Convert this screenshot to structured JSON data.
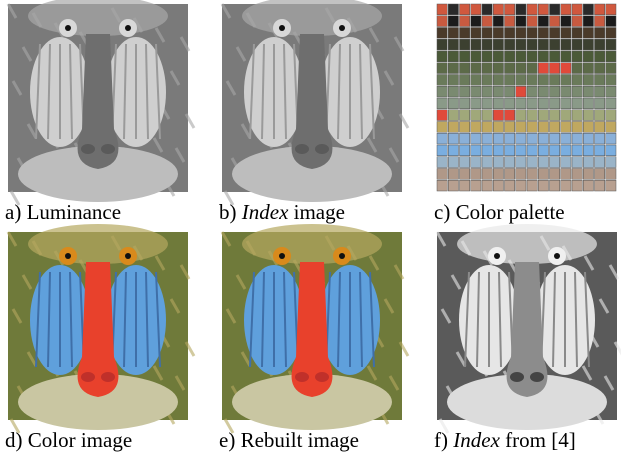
{
  "panels": [
    {
      "label": "a)",
      "text": "Luminance"
    },
    {
      "label": "b)",
      "italic": "Index",
      "text": "image"
    },
    {
      "label": "c)",
      "text": "Color palette"
    },
    {
      "label": "d)",
      "text": "Color image"
    },
    {
      "label": "e)",
      "text": "Rebuilt image"
    },
    {
      "label": "f)",
      "italic": "Index",
      "text": "from [4]"
    }
  ]
}
